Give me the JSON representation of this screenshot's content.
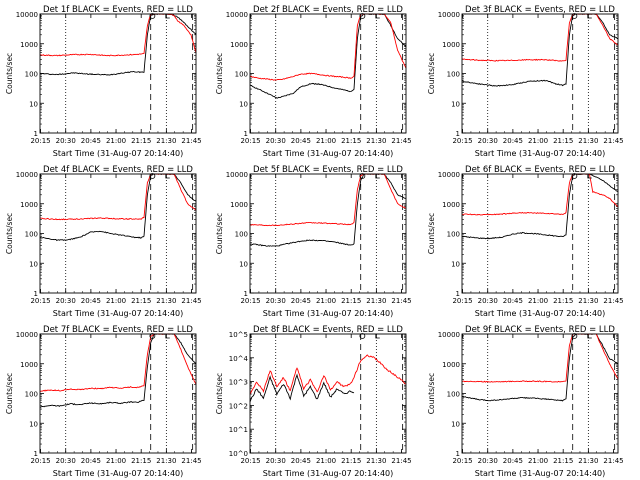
{
  "chart_data": [
    {
      "type": "line",
      "title": "Det 1f BLACK = Events, RED = LLD",
      "xlabel": "Start Time (31-Aug-07 20:14:40)",
      "ylabel": "Counts/sec",
      "xticks": [
        "20:15",
        "20:30",
        "20:45",
        "21:00",
        "21:15",
        "21:30",
        "21:45"
      ],
      "yscale": "log",
      "ylim": [
        1,
        10000
      ],
      "ytick_labels": [
        "1",
        "10",
        "100",
        "1000",
        "10000"
      ],
      "series": [
        {
          "color": "#000000",
          "x": [
            0,
            10,
            20,
            30,
            40,
            45,
            55,
            62,
            64,
            66,
            68,
            70,
            74,
            77,
            80,
            82,
            86,
            90,
            93
          ],
          "y": [
            100,
            92,
            105,
            95,
            90,
            96,
            115,
            110,
            2000,
            9000,
            10000,
            10000,
            10000,
            10000,
            9000,
            8000,
            5000,
            3000,
            2000
          ]
        },
        {
          "color": "#ff0000",
          "x": [
            0,
            10,
            20,
            30,
            40,
            45,
            55,
            62,
            64,
            66,
            68,
            70,
            74,
            77,
            80,
            82,
            86,
            90,
            93
          ],
          "y": [
            420,
            400,
            430,
            440,
            400,
            405,
            430,
            460,
            4000,
            10000,
            10000,
            10000,
            10000,
            10000,
            9000,
            6000,
            4000,
            2000,
            500
          ]
        }
      ]
    },
    {
      "type": "line",
      "title": "Det 2f BLACK = Events, RED = LLD",
      "xlabel": "Start Time (31-Aug-07 20:14:40)",
      "ylabel": "Counts/sec",
      "xticks": [
        "20:15",
        "20:30",
        "20:45",
        "21:00",
        "21:15",
        "21:30",
        "21:45"
      ],
      "yscale": "log",
      "ylim": [
        1,
        10000
      ],
      "ytick_labels": [
        "1",
        "10",
        "100",
        "1000",
        "10000"
      ],
      "series": [
        {
          "color": "#000000",
          "x": [
            0,
            5,
            10,
            16,
            20,
            26,
            30,
            36,
            40,
            46,
            50,
            56,
            60,
            62,
            64,
            66,
            68,
            72,
            76,
            80,
            84,
            88,
            93
          ],
          "y": [
            40,
            30,
            22,
            15,
            17,
            22,
            35,
            45,
            45,
            38,
            33,
            28,
            25,
            30,
            1500,
            8000,
            10000,
            10000,
            10000,
            10000,
            4000,
            1500,
            800
          ]
        },
        {
          "color": "#ff0000",
          "x": [
            0,
            5,
            10,
            16,
            20,
            26,
            30,
            36,
            40,
            46,
            50,
            56,
            60,
            62,
            64,
            66,
            68,
            72,
            76,
            80,
            84,
            88,
            93
          ],
          "y": [
            80,
            70,
            65,
            60,
            65,
            80,
            95,
            100,
            95,
            85,
            80,
            75,
            70,
            80,
            4000,
            10000,
            10000,
            10000,
            10000,
            10000,
            5000,
            600,
            150
          ]
        }
      ]
    },
    {
      "type": "line",
      "title": "Det 3f BLACK = Events, RED = LLD",
      "xlabel": "Start Time (31-Aug-07 20:14:40)",
      "ylabel": "Counts/sec",
      "xticks": [
        "20:15",
        "20:30",
        "20:45",
        "21:00",
        "21:15",
        "21:30",
        "21:45"
      ],
      "yscale": "log",
      "ylim": [
        1,
        10000
      ],
      "ytick_labels": [
        "1",
        "10",
        "100",
        "1000",
        "10000"
      ],
      "series": [
        {
          "color": "#000000",
          "x": [
            0,
            10,
            20,
            30,
            40,
            50,
            56,
            60,
            62,
            64,
            66,
            68,
            72,
            76,
            80,
            84,
            88,
            93
          ],
          "y": [
            55,
            45,
            38,
            42,
            55,
            58,
            45,
            40,
            45,
            2000,
            9000,
            10000,
            10000,
            10000,
            10000,
            5000,
            2000,
            1500
          ]
        },
        {
          "color": "#ff0000",
          "x": [
            0,
            10,
            20,
            30,
            40,
            50,
            56,
            60,
            62,
            64,
            66,
            68,
            72,
            76,
            80,
            84,
            88,
            93
          ],
          "y": [
            300,
            280,
            270,
            275,
            290,
            290,
            270,
            260,
            280,
            5000,
            10000,
            10000,
            10000,
            10000,
            10000,
            4000,
            1500,
            900
          ]
        }
      ]
    },
    {
      "type": "line",
      "title": "Det 4f BLACK = Events, RED = LLD",
      "xlabel": "Start Time (31-Aug-07 20:14:40)",
      "ylabel": "Counts/sec",
      "xticks": [
        "20:15",
        "20:30",
        "20:45",
        "21:00",
        "21:15",
        "21:30",
        "21:45"
      ],
      "yscale": "log",
      "ylim": [
        1,
        10000
      ],
      "ytick_labels": [
        "1",
        "10",
        "100",
        "1000",
        "10000"
      ],
      "series": [
        {
          "color": "#000000",
          "x": [
            0,
            10,
            16,
            24,
            30,
            36,
            42,
            50,
            56,
            60,
            62,
            64,
            66,
            68,
            72,
            76,
            80,
            84,
            88,
            93
          ],
          "y": [
            75,
            60,
            60,
            75,
            110,
            120,
            100,
            85,
            75,
            72,
            80,
            2000,
            9000,
            10000,
            10000,
            10000,
            10000,
            5000,
            2000,
            1200
          ]
        },
        {
          "color": "#ff0000",
          "x": [
            0,
            10,
            16,
            24,
            30,
            36,
            42,
            50,
            56,
            60,
            62,
            64,
            66,
            68,
            72,
            76,
            80,
            84,
            88,
            93
          ],
          "y": [
            320,
            300,
            300,
            310,
            320,
            330,
            320,
            310,
            305,
            300,
            350,
            5000,
            10000,
            10000,
            10000,
            10000,
            10000,
            3000,
            1000,
            600
          ]
        }
      ]
    },
    {
      "type": "line",
      "title": "Det 5f BLACK = Events, RED = LLD",
      "xlabel": "Start Time (31-Aug-07 20:14:40)",
      "ylabel": "Counts/sec",
      "xticks": [
        "20:15",
        "20:30",
        "20:45",
        "21:00",
        "21:15",
        "21:30",
        "21:45"
      ],
      "yscale": "log",
      "ylim": [
        1,
        10000
      ],
      "ytick_labels": [
        "1",
        "10",
        "100",
        "1000",
        "10000"
      ],
      "series": [
        {
          "color": "#000000",
          "x": [
            0,
            10,
            16,
            22,
            30,
            36,
            42,
            50,
            56,
            60,
            62,
            64,
            66,
            68,
            72,
            76,
            80,
            84,
            88,
            93
          ],
          "y": [
            45,
            38,
            38,
            45,
            55,
            60,
            58,
            52,
            45,
            40,
            45,
            1000,
            6000,
            10000,
            10000,
            10000,
            10000,
            5000,
            2000,
            1500
          ]
        },
        {
          "color": "#ff0000",
          "x": [
            0,
            10,
            16,
            22,
            30,
            36,
            42,
            50,
            56,
            60,
            62,
            64,
            66,
            68,
            72,
            76,
            80,
            84,
            88,
            93
          ],
          "y": [
            200,
            190,
            190,
            200,
            220,
            230,
            225,
            215,
            205,
            200,
            230,
            3000,
            9000,
            10000,
            10000,
            10000,
            10000,
            3000,
            1000,
            700
          ]
        }
      ]
    },
    {
      "type": "line",
      "title": "Det 6f BLACK = Events, RED = LLD",
      "xlabel": "Start Time (31-Aug-07 20:14:40)",
      "ylabel": "Counts/sec",
      "xticks": [
        "20:15",
        "20:30",
        "20:45",
        "21:00",
        "21:15",
        "21:30",
        "21:45"
      ],
      "yscale": "log",
      "ylim": [
        1,
        10000
      ],
      "ytick_labels": [
        "1",
        "10",
        "100",
        "1000",
        "10000"
      ],
      "series": [
        {
          "color": "#000000",
          "x": [
            0,
            10,
            16,
            24,
            30,
            36,
            42,
            50,
            56,
            60,
            62,
            64,
            66,
            68,
            72,
            76,
            78,
            84,
            88,
            93
          ],
          "y": [
            80,
            70,
            68,
            75,
            95,
            105,
            100,
            90,
            82,
            78,
            90,
            2000,
            9000,
            10000,
            10000,
            10000,
            9000,
            6000,
            4000,
            2500
          ]
        },
        {
          "color": "#ff0000",
          "x": [
            0,
            10,
            16,
            24,
            30,
            36,
            42,
            50,
            56,
            60,
            62,
            64,
            66,
            68,
            72,
            76,
            78,
            84,
            88,
            93
          ],
          "y": [
            450,
            430,
            430,
            450,
            480,
            500,
            490,
            470,
            450,
            440,
            500,
            5000,
            10000,
            10000,
            10000,
            10000,
            2500,
            2000,
            1500,
            800
          ]
        }
      ]
    },
    {
      "type": "line",
      "title": "Det 7f BLACK = Events, RED = LLD",
      "xlabel": "Start Time (31-Aug-07 20:14:40)",
      "ylabel": "Counts/sec",
      "xticks": [
        "20:15",
        "20:30",
        "20:45",
        "21:00",
        "21:15",
        "21:30",
        "21:45"
      ],
      "yscale": "log",
      "ylim": [
        1,
        10000
      ],
      "ytick_labels": [
        "1",
        "10",
        "100",
        "1000",
        "10000"
      ],
      "series": [
        {
          "color": "#000000",
          "x": [
            0,
            6,
            12,
            18,
            24,
            30,
            36,
            42,
            48,
            54,
            58,
            60,
            62,
            64,
            66,
            68,
            72,
            76,
            80,
            84,
            88,
            93
          ],
          "y": [
            35,
            40,
            38,
            45,
            42,
            48,
            45,
            50,
            47,
            52,
            50,
            55,
            60,
            800,
            5000,
            10000,
            10000,
            10000,
            10000,
            5000,
            2000,
            1000
          ]
        },
        {
          "color": "#ff0000",
          "x": [
            0,
            6,
            12,
            18,
            24,
            30,
            36,
            42,
            48,
            54,
            58,
            60,
            62,
            64,
            66,
            68,
            72,
            76,
            80,
            84,
            88,
            93
          ],
          "y": [
            120,
            130,
            125,
            140,
            135,
            150,
            145,
            160,
            150,
            165,
            160,
            170,
            180,
            2000,
            8000,
            10000,
            10000,
            10000,
            10000,
            3000,
            800,
            200
          ]
        }
      ]
    },
    {
      "type": "line",
      "title": "Det 8f BLACK = Events, RED = LLD",
      "xlabel": "Start Time (31-Aug-07 20:14:40)",
      "ylabel": "Counts/sec",
      "xticks": [
        "20:15",
        "20:30",
        "20:45",
        "21:00",
        "21:15",
        "21:30",
        "21:45"
      ],
      "yscale": "log",
      "ylim": [
        1,
        100000
      ],
      "ytick_labels": [
        "10^0",
        "10^1",
        "10^2",
        "10^3",
        "10^4",
        "10^5"
      ],
      "series": [
        {
          "color": "#000000",
          "x": [
            0,
            4,
            8,
            12,
            16,
            20,
            24,
            28,
            32,
            36,
            40,
            44,
            48,
            52,
            56,
            60,
            62
          ],
          "y": [
            150,
            500,
            200,
            1500,
            300,
            800,
            200,
            2000,
            250,
            600,
            180,
            900,
            220,
            500,
            300,
            400,
            350
          ]
        },
        {
          "color": "#ff0000",
          "x": [
            0,
            4,
            8,
            12,
            16,
            20,
            24,
            28,
            32,
            36,
            40,
            44,
            48,
            52,
            56,
            60,
            62,
            66,
            70,
            74,
            78,
            82,
            86,
            90,
            93
          ],
          "y": [
            300,
            1000,
            400,
            3000,
            600,
            1500,
            400,
            4000,
            500,
            1200,
            350,
            1800,
            450,
            1000,
            600,
            800,
            1500,
            8000,
            12000,
            10000,
            6000,
            3000,
            2000,
            1200,
            800
          ]
        }
      ]
    },
    {
      "type": "line",
      "title": "Det 9f BLACK = Events, RED = LLD",
      "xlabel": "Start Time (31-Aug-07 20:14:40)",
      "ylabel": "Counts/sec",
      "xticks": [
        "20:15",
        "20:30",
        "20:45",
        "21:00",
        "21:15",
        "21:30",
        "21:45"
      ],
      "yscale": "log",
      "ylim": [
        1,
        10000
      ],
      "ytick_labels": [
        "1",
        "10",
        "100",
        "1000",
        "10000"
      ],
      "series": [
        {
          "color": "#000000",
          "x": [
            0,
            10,
            16,
            24,
            30,
            36,
            42,
            50,
            56,
            60,
            62,
            64,
            66,
            68,
            72,
            76,
            80,
            84,
            88,
            93
          ],
          "y": [
            80,
            62,
            58,
            62,
            68,
            72,
            70,
            65,
            60,
            58,
            65,
            1500,
            8000,
            10000,
            10000,
            10000,
            10000,
            4000,
            1500,
            1000
          ]
        },
        {
          "color": "#ff0000",
          "x": [
            0,
            10,
            16,
            24,
            30,
            36,
            42,
            50,
            56,
            60,
            62,
            64,
            66,
            68,
            72,
            76,
            80,
            84,
            88,
            93
          ],
          "y": [
            260,
            250,
            248,
            250,
            255,
            260,
            258,
            252,
            248,
            246,
            270,
            4000,
            10000,
            10000,
            10000,
            10000,
            10000,
            3000,
            1000,
            300
          ]
        }
      ]
    }
  ]
}
